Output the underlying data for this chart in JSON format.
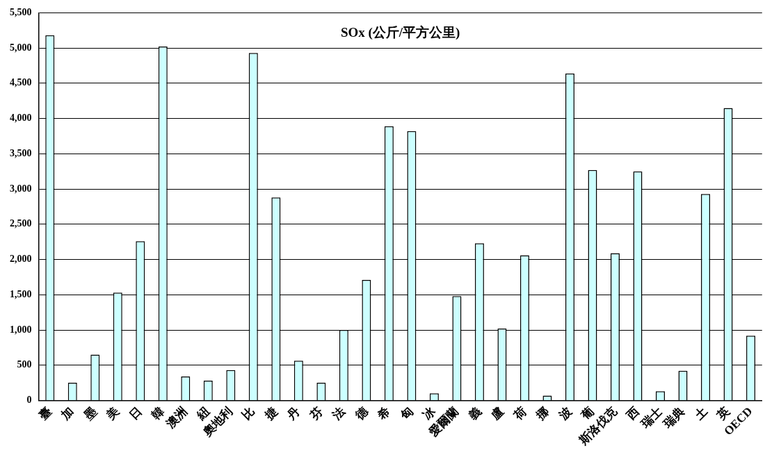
{
  "chart_data": {
    "type": "bar",
    "title": "SOx (公斤/平方公里)",
    "categories": [
      "臺",
      "加",
      "墨",
      "美",
      "日",
      "韓",
      "澳洲",
      "紐",
      "奧地利",
      "比",
      "捷",
      "丹",
      "芬",
      "法",
      "德",
      "希",
      "匈",
      "冰",
      "愛爾蘭",
      "義",
      "盧",
      "荷",
      "挪",
      "波",
      "葡",
      "斯洛伐克",
      "西",
      "瑞士",
      "瑞典",
      "土",
      "英",
      "OECD"
    ],
    "values": [
      5180,
      250,
      650,
      1530,
      2260,
      5020,
      340,
      280,
      430,
      4930,
      2880,
      565,
      250,
      1000,
      1710,
      3890,
      3820,
      100,
      1480,
      2230,
      1020,
      2060,
      70,
      4640,
      3270,
      2090,
      3250,
      130,
      420,
      2930,
      4150,
      920
    ],
    "color": "#ccffff",
    "ylim": [
      0,
      5500
    ],
    "yticks": [
      0,
      500,
      {
        "value": 1000,
        "label": "1,000"
      },
      {
        "value": 1500,
        "label": "1,500"
      },
      {
        "value": 2000,
        "label": "2,000"
      },
      {
        "value": 2500,
        "label": "2,500"
      },
      {
        "value": 3000,
        "label": "3,000"
      },
      {
        "value": 3500,
        "label": "3,500"
      },
      {
        "value": 4000,
        "label": "4,000"
      },
      {
        "value": 4500,
        "label": "4,500"
      },
      {
        "value": 5000,
        "label": "5,000"
      },
      {
        "value": 5500,
        "label": "5,500"
      }
    ],
    "grid": "y",
    "legend": false
  }
}
